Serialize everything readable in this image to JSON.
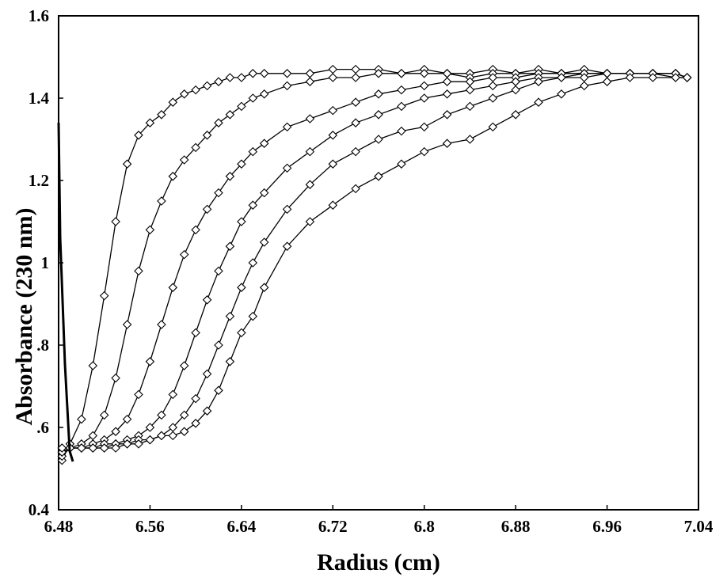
{
  "chart_data": {
    "type": "scatter",
    "title": "",
    "xlabel": "Radius (cm)",
    "ylabel": "Absorbance (230 nm)",
    "xlim": [
      6.48,
      7.04
    ],
    "ylim": [
      0.4,
      1.6
    ],
    "xticks": [
      6.48,
      6.56,
      6.64,
      6.72,
      6.8,
      6.88,
      6.96,
      7.04
    ],
    "xtick_labels": [
      "6.48",
      "6.56",
      "6.64",
      "6.72",
      "6.8",
      "6.88",
      "6.96",
      "7.04"
    ],
    "yticks": [
      0.4,
      0.6,
      0.8,
      1.0,
      1.2,
      1.4,
      1.6
    ],
    "ytick_labels": [
      "0.4",
      ".6",
      ".8",
      "1",
      "1.2",
      "1.4",
      "1.6"
    ],
    "grid": false,
    "legend": "none",
    "marker": "open-diamond-with-connecting-line",
    "series": [
      {
        "x": [
          6.483,
          6.49,
          6.5,
          6.51,
          6.52,
          6.53,
          6.54,
          6.55,
          6.56,
          6.57,
          6.58,
          6.59,
          6.6,
          6.61,
          6.62,
          6.63,
          6.64,
          6.65,
          6.66,
          6.68,
          6.7,
          6.72,
          6.74,
          6.76,
          6.78,
          6.8,
          6.82,
          6.84,
          6.86,
          6.88,
          6.9,
          6.92,
          6.94,
          6.96,
          6.98,
          7.0,
          7.02,
          7.03
        ],
        "y": [
          0.52,
          0.56,
          0.62,
          0.75,
          0.92,
          1.1,
          1.24,
          1.31,
          1.34,
          1.36,
          1.39,
          1.41,
          1.42,
          1.43,
          1.44,
          1.45,
          1.45,
          1.46,
          1.46,
          1.46,
          1.46,
          1.47,
          1.47,
          1.47,
          1.46,
          1.47,
          1.46,
          1.46,
          1.47,
          1.46,
          1.46,
          1.46,
          1.47,
          1.46,
          1.46,
          1.46,
          1.46,
          1.45
        ]
      },
      {
        "x": [
          6.483,
          6.49,
          6.5,
          6.51,
          6.52,
          6.53,
          6.54,
          6.55,
          6.56,
          6.57,
          6.58,
          6.59,
          6.6,
          6.61,
          6.62,
          6.63,
          6.64,
          6.65,
          6.66,
          6.68,
          6.7,
          6.72,
          6.74,
          6.76,
          6.78,
          6.8,
          6.82,
          6.84,
          6.86,
          6.88,
          6.9,
          6.92,
          6.94,
          6.96,
          6.98,
          7.0,
          7.02,
          7.03
        ],
        "y": [
          0.53,
          0.55,
          0.56,
          0.58,
          0.63,
          0.72,
          0.85,
          0.98,
          1.08,
          1.15,
          1.21,
          1.25,
          1.28,
          1.31,
          1.34,
          1.36,
          1.38,
          1.4,
          1.41,
          1.43,
          1.44,
          1.45,
          1.45,
          1.46,
          1.46,
          1.46,
          1.46,
          1.45,
          1.46,
          1.46,
          1.47,
          1.46,
          1.46,
          1.46,
          1.46,
          1.46,
          1.45,
          1.45
        ]
      },
      {
        "x": [
          6.483,
          6.49,
          6.5,
          6.51,
          6.52,
          6.53,
          6.54,
          6.55,
          6.56,
          6.57,
          6.58,
          6.59,
          6.6,
          6.61,
          6.62,
          6.63,
          6.64,
          6.65,
          6.66,
          6.68,
          6.7,
          6.72,
          6.74,
          6.76,
          6.78,
          6.8,
          6.82,
          6.84,
          6.86,
          6.88,
          6.9,
          6.92,
          6.94,
          6.96,
          6.98,
          7.0,
          7.02,
          7.03
        ],
        "y": [
          0.54,
          0.55,
          0.55,
          0.56,
          0.57,
          0.59,
          0.62,
          0.68,
          0.76,
          0.85,
          0.94,
          1.02,
          1.08,
          1.13,
          1.17,
          1.21,
          1.24,
          1.27,
          1.29,
          1.33,
          1.35,
          1.37,
          1.39,
          1.41,
          1.42,
          1.43,
          1.44,
          1.44,
          1.45,
          1.45,
          1.46,
          1.46,
          1.46,
          1.46,
          1.46,
          1.46,
          1.46,
          1.45
        ]
      },
      {
        "x": [
          6.483,
          6.49,
          6.5,
          6.51,
          6.52,
          6.53,
          6.54,
          6.55,
          6.56,
          6.57,
          6.58,
          6.59,
          6.6,
          6.61,
          6.62,
          6.63,
          6.64,
          6.65,
          6.66,
          6.68,
          6.7,
          6.72,
          6.74,
          6.76,
          6.78,
          6.8,
          6.82,
          6.84,
          6.86,
          6.88,
          6.9,
          6.92,
          6.94,
          6.96,
          6.98,
          7.0,
          7.02,
          7.03
        ],
        "y": [
          0.54,
          0.55,
          0.55,
          0.55,
          0.56,
          0.56,
          0.57,
          0.58,
          0.6,
          0.63,
          0.68,
          0.75,
          0.83,
          0.91,
          0.98,
          1.04,
          1.1,
          1.14,
          1.17,
          1.23,
          1.27,
          1.31,
          1.34,
          1.36,
          1.38,
          1.4,
          1.41,
          1.42,
          1.43,
          1.44,
          1.45,
          1.45,
          1.46,
          1.46,
          1.46,
          1.46,
          1.46,
          1.45
        ]
      },
      {
        "x": [
          6.483,
          6.49,
          6.5,
          6.51,
          6.52,
          6.53,
          6.54,
          6.55,
          6.56,
          6.57,
          6.58,
          6.59,
          6.6,
          6.61,
          6.62,
          6.63,
          6.64,
          6.65,
          6.66,
          6.68,
          6.7,
          6.72,
          6.74,
          6.76,
          6.78,
          6.8,
          6.82,
          6.84,
          6.86,
          6.88,
          6.9,
          6.92,
          6.94,
          6.96,
          6.98,
          7.0,
          7.02,
          7.03
        ],
        "y": [
          0.55,
          0.55,
          0.55,
          0.55,
          0.55,
          0.56,
          0.56,
          0.57,
          0.57,
          0.58,
          0.6,
          0.63,
          0.67,
          0.73,
          0.8,
          0.87,
          0.94,
          1.0,
          1.05,
          1.13,
          1.19,
          1.24,
          1.27,
          1.3,
          1.32,
          1.33,
          1.36,
          1.38,
          1.4,
          1.42,
          1.44,
          1.45,
          1.45,
          1.46,
          1.46,
          1.46,
          1.46,
          1.45
        ]
      },
      {
        "x": [
          6.483,
          6.49,
          6.5,
          6.51,
          6.52,
          6.53,
          6.54,
          6.55,
          6.56,
          6.57,
          6.58,
          6.59,
          6.6,
          6.61,
          6.62,
          6.63,
          6.64,
          6.65,
          6.66,
          6.68,
          6.7,
          6.72,
          6.74,
          6.76,
          6.78,
          6.8,
          6.82,
          6.84,
          6.86,
          6.88,
          6.9,
          6.92,
          6.94,
          6.96,
          6.98,
          7.0,
          7.02,
          7.03
        ],
        "y": [
          0.55,
          0.55,
          0.55,
          0.55,
          0.55,
          0.55,
          0.56,
          0.56,
          0.57,
          0.58,
          0.58,
          0.59,
          0.61,
          0.64,
          0.69,
          0.76,
          0.83,
          0.87,
          0.94,
          1.04,
          1.1,
          1.14,
          1.18,
          1.21,
          1.24,
          1.27,
          1.29,
          1.3,
          1.33,
          1.36,
          1.39,
          1.41,
          1.43,
          1.44,
          1.45,
          1.45,
          1.45,
          1.45
        ]
      }
    ]
  }
}
